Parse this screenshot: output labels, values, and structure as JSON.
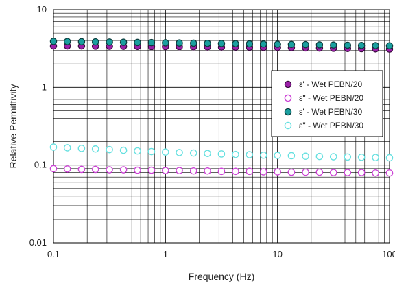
{
  "chart_data": {
    "type": "scatter",
    "xlabel": "Frequency (Hz)",
    "ylabel": "Relative Permittivity",
    "xscale": "log",
    "yscale": "log",
    "xlim": [
      0.1,
      100
    ],
    "ylim": [
      0.01,
      10
    ],
    "x_tick_labels": [
      "0.1",
      "1",
      "10",
      "100"
    ],
    "y_tick_labels": [
      "10",
      "1",
      "0.1",
      "0.01"
    ],
    "grid": "major and minor",
    "legend_position": "right",
    "x": [
      0.1,
      0.133,
      0.178,
      0.237,
      0.316,
      0.422,
      0.562,
      0.75,
      1.0,
      1.33,
      1.78,
      2.37,
      3.16,
      4.22,
      5.62,
      7.5,
      10.0,
      13.3,
      17.8,
      23.7,
      31.6,
      42.2,
      56.2,
      75.0,
      100
    ],
    "series": [
      {
        "name": "ε' - Wet PEBN/20",
        "marker": "filled",
        "color": "#9b1fa8",
        "edge": "#3a0a40",
        "values": [
          3.4,
          3.4,
          3.4,
          3.38,
          3.37,
          3.36,
          3.35,
          3.34,
          3.33,
          3.32,
          3.31,
          3.3,
          3.29,
          3.28,
          3.27,
          3.25,
          3.24,
          3.23,
          3.21,
          3.2,
          3.18,
          3.16,
          3.14,
          3.12,
          3.1
        ]
      },
      {
        "name": "ε\" - Wet PEBN/20",
        "marker": "open",
        "color": "#cc44d6",
        "edge": "#cc44d6",
        "values": [
          0.09,
          0.089,
          0.088,
          0.088,
          0.087,
          0.087,
          0.086,
          0.086,
          0.085,
          0.085,
          0.084,
          0.084,
          0.083,
          0.083,
          0.083,
          0.082,
          0.082,
          0.081,
          0.081,
          0.081,
          0.08,
          0.08,
          0.08,
          0.079,
          0.079
        ]
      },
      {
        "name": "ε' - Wet PEBN/30",
        "marker": "filled",
        "color": "#1a9f9f",
        "edge": "#0b3c3c",
        "values": [
          3.9,
          3.88,
          3.86,
          3.84,
          3.82,
          3.8,
          3.78,
          3.76,
          3.74,
          3.72,
          3.7,
          3.68,
          3.66,
          3.64,
          3.62,
          3.6,
          3.58,
          3.56,
          3.54,
          3.52,
          3.5,
          3.48,
          3.46,
          3.44,
          3.42
        ]
      },
      {
        "name": "ε\" - Wet PEBN/30",
        "marker": "open",
        "color": "#66e0e0",
        "edge": "#66e0e0",
        "values": [
          0.17,
          0.167,
          0.164,
          0.161,
          0.158,
          0.155,
          0.152,
          0.149,
          0.147,
          0.145,
          0.143,
          0.141,
          0.139,
          0.137,
          0.136,
          0.134,
          0.133,
          0.132,
          0.13,
          0.129,
          0.128,
          0.127,
          0.126,
          0.125,
          0.124
        ]
      }
    ]
  }
}
